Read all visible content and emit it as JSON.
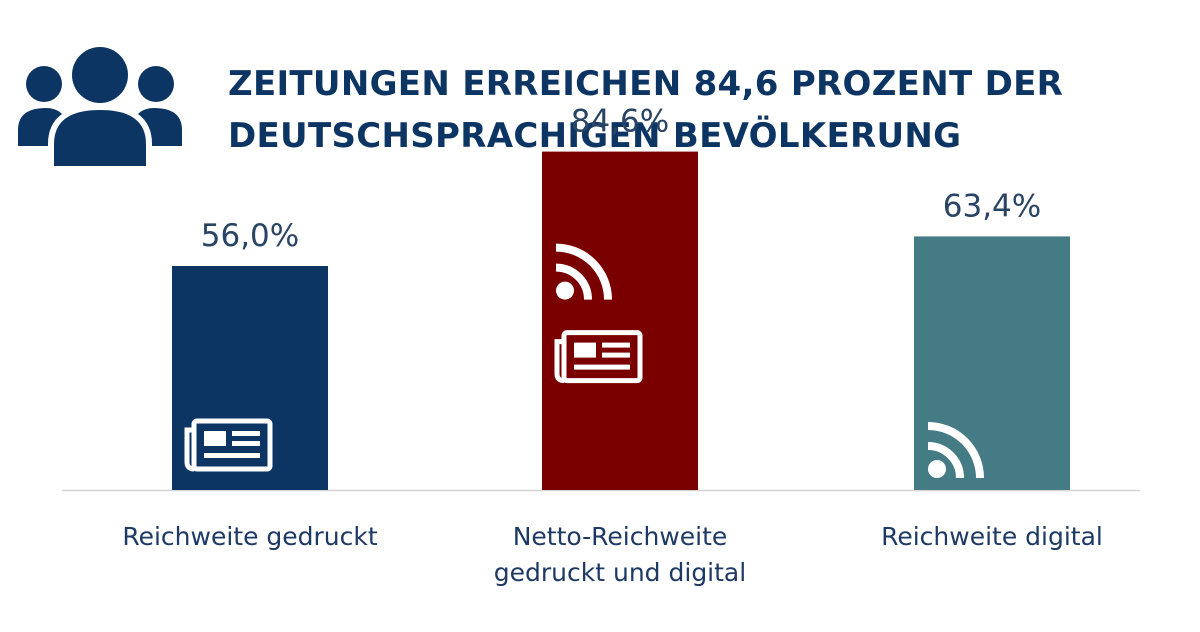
{
  "title": {
    "line1": "ZEITUNGEN ERREICHEN 84,6 PROZENT DER",
    "line2": "DEUTSCHSPRACHIGEN BEVÖLKERUNG"
  },
  "header_icon": "people-group-icon",
  "colors": {
    "title": "#0d3563",
    "gedruckt": "#0d3563",
    "netto": "#7a0000",
    "digital": "#447b85",
    "axis": "#d4d4d4"
  },
  "chart_data": {
    "type": "bar",
    "title": "ZEITUNGEN ERREICHEN 84,6 PROZENT DER DEUTSCHSPRACHIGEN BEVÖLKERUNG",
    "categories": [
      [
        "Reichweite gedruckt"
      ],
      [
        "Netto-Reichweite",
        "gedruckt und digital"
      ],
      [
        "Reichweite digital"
      ]
    ],
    "values": [
      56.0,
      84.6,
      63.4
    ],
    "value_labels": [
      "56,0%",
      "84,6%",
      "63,4%"
    ],
    "bar_colors": [
      "#0d3563",
      "#7a0000",
      "#447b85"
    ],
    "bar_icons": [
      [
        "newspaper-icon"
      ],
      [
        "rss-icon",
        "newspaper-icon"
      ],
      [
        "rss-icon"
      ]
    ],
    "xlabel": "",
    "ylabel": "",
    "ylim": [
      0,
      100
    ],
    "grid": false,
    "legend": "none"
  }
}
